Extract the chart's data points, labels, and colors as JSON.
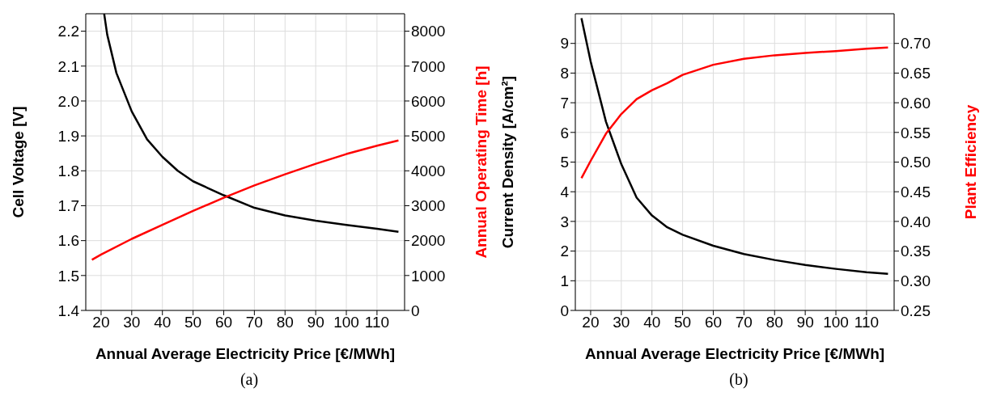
{
  "chart_data": [
    {
      "type": "line",
      "xlabel": "Annual Average Electricity Price [€/MWh]",
      "ylabel": "Cell Voltage [V]",
      "y2label": "Annual Operating Time [h]",
      "annotations": [
        "(a)"
      ],
      "xlim": [
        15,
        119
      ],
      "xticks": [
        20,
        30,
        40,
        50,
        60,
        70,
        80,
        90,
        100,
        110
      ],
      "ylim": [
        1.4,
        2.25
      ],
      "yticks": [
        1.4,
        1.5,
        1.6,
        1.7,
        1.8,
        1.9,
        {
          "value": 2,
          "label": "2.0"
        },
        2.1,
        2.2
      ],
      "y2lim": [
        0,
        8500
      ],
      "y2ticks": [
        0,
        1000,
        2000,
        3000,
        4000,
        5000,
        6000,
        7000,
        8000
      ],
      "grid": true,
      "line_style": "solid",
      "series": [
        {
          "color": "#000000",
          "axis": "y",
          "x": [
            21,
            22,
            25,
            30,
            35,
            40,
            45,
            50,
            60,
            70,
            80,
            90,
            100,
            110,
            117
          ],
          "values": [
            2.25,
            2.19,
            2.08,
            1.97,
            1.89,
            1.84,
            1.8,
            1.77,
            1.73,
            1.694,
            1.672,
            1.657,
            1.645,
            1.634,
            1.625
          ]
        },
        {
          "color": "#ff0000",
          "axis": "y2",
          "x": [
            17,
            20,
            30,
            40,
            50,
            60,
            70,
            80,
            90,
            100,
            110,
            117
          ],
          "values": [
            1450,
            1600,
            2050,
            2450,
            2850,
            3230,
            3580,
            3900,
            4200,
            4480,
            4720,
            4870
          ]
        }
      ]
    },
    {
      "type": "line",
      "xlabel": "Annual Average Electricity Price [€/MWh]",
      "ylabel": "Current Density [A/cm²]",
      "y2label": "Plant Efficiency",
      "annotations": [
        "(b)"
      ],
      "xlim": [
        15,
        119
      ],
      "xticks": [
        20,
        30,
        40,
        50,
        60,
        70,
        80,
        90,
        100,
        110
      ],
      "ylim": [
        0,
        10
      ],
      "yticks": [
        0,
        1,
        2,
        3,
        4,
        5,
        6,
        7,
        8,
        9
      ],
      "y2lim": [
        0.25,
        0.75
      ],
      "y2ticks": [
        {
          "value": 0.25,
          "label": "0.25"
        },
        {
          "value": 0.3,
          "label": "0.30"
        },
        {
          "value": 0.35,
          "label": "0.35"
        },
        {
          "value": 0.4,
          "label": "0.40"
        },
        {
          "value": 0.45,
          "label": "0.45"
        },
        {
          "value": 0.5,
          "label": "0.50"
        },
        {
          "value": 0.55,
          "label": "0.55"
        },
        {
          "value": 0.6,
          "label": "0.60"
        },
        {
          "value": 0.65,
          "label": "0.65"
        },
        {
          "value": 0.7,
          "label": "0.70"
        }
      ],
      "grid": true,
      "line_style": "solid",
      "x": [
        17,
        20,
        25,
        30,
        35,
        40,
        45,
        50,
        60,
        70,
        80,
        90,
        100,
        110,
        117
      ],
      "series": [
        {
          "color": "#000000",
          "axis": "y",
          "values": [
            9.85,
            8.39,
            6.36,
            4.93,
            3.8,
            3.2,
            2.8,
            2.55,
            2.18,
            1.9,
            1.7,
            1.53,
            1.4,
            1.29,
            1.23
          ]
        },
        {
          "color": "#ff0000",
          "axis": "y2",
          "values": [
            0.473,
            0.502,
            0.548,
            0.581,
            0.606,
            0.621,
            0.633,
            0.647,
            0.664,
            0.674,
            0.68,
            0.684,
            0.687,
            0.691,
            0.693
          ]
        }
      ]
    }
  ]
}
